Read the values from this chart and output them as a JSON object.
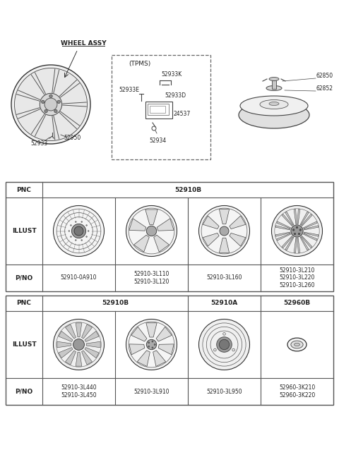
{
  "bg_color": "#ffffff",
  "border_color": "#555555",
  "text_color": "#222222",
  "table1": {
    "pnc_label": "PNC",
    "pnc_value": "52910B",
    "illust_label": "ILLUST",
    "pno_label": "P/NO",
    "cols": [
      {
        "pno": "52910-0A910"
      },
      {
        "pno": "52910-3L110\n52910-3L120"
      },
      {
        "pno": "52910-3L160"
      },
      {
        "pno": "52910-3L210\n52910-3L220\n52910-3L260"
      }
    ]
  },
  "table2": {
    "pnc_label": "PNC",
    "pnc_values": [
      "52910B",
      "52910A",
      "52960B"
    ],
    "pnc_spans": [
      2,
      1,
      1
    ],
    "illust_label": "ILLUST",
    "pno_label": "P/NO",
    "cols": [
      {
        "pno": "52910-3L440\n52910-3L450"
      },
      {
        "pno": "52910-3L910"
      },
      {
        "pno": "52910-3L950"
      },
      {
        "pno": "52960-3K210\n52960-3K220"
      }
    ]
  }
}
